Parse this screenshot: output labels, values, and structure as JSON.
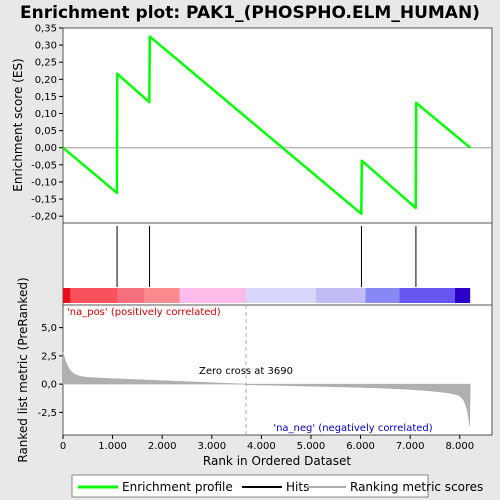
{
  "chart_data": {
    "type": "line",
    "title": "Enrichment plot: PAK1_(PHOSPHO.ELM_HUMAN)",
    "colors": {
      "enrichment": "#00ff00",
      "hits": "#000000",
      "metric": "#b0b0b0",
      "pos_label": "#cc0000",
      "neg_label": "#0000cc",
      "zero_line": "#aaaaaa"
    },
    "enrichment_panel": {
      "ylabel": "Enrichment score (ES)",
      "ylim": [
        -0.22,
        0.35
      ],
      "yticks": [
        0.35,
        0.3,
        0.25,
        0.2,
        0.15,
        0.1,
        0.05,
        0.0,
        -0.05,
        -0.1,
        -0.15,
        -0.2
      ],
      "ytick_labels": [
        "0,35",
        "0,30",
        "0,25",
        "0,20",
        "0,15",
        "0,10",
        "0,05",
        "0,00",
        "-0,05",
        "-0,10",
        "-0,15",
        "-0,20"
      ],
      "es_curve": {
        "x": [
          0,
          1087,
          1095,
          1740,
          1750,
          6014,
          6025,
          7112,
          7122,
          8210
        ],
        "y": [
          0.0,
          -0.132,
          0.216,
          0.133,
          0.325,
          -0.193,
          -0.038,
          -0.176,
          0.131,
          0.0
        ]
      }
    },
    "hits": [
      1090,
      1745,
      6018,
      7116
    ],
    "ranked_panel": {
      "ylabel": "Ranked list metric (PreRanked)",
      "ylim": [
        -4.5,
        7.0
      ],
      "yticks": [
        5.0,
        2.5,
        0.0,
        -2.5
      ],
      "ytick_labels": [
        "5,0",
        "2,5",
        "0,0",
        "-2,5"
      ],
      "pos_label": "'na_pos' (positively correlated)",
      "neg_label": "'na_neg' (negatively correlated)",
      "zero_cross_label": "Zero cross at 3690",
      "zero_cross": 3690
    },
    "xlabel": "Rank in Ordered Dataset",
    "xlim": [
      0,
      8650
    ],
    "xticks": [
      0,
      1000,
      2000,
      3000,
      4000,
      5000,
      6000,
      7000,
      8000
    ],
    "xtick_labels": [
      "0",
      "1.000",
      "2.000",
      "3.000",
      "4.000",
      "5.000",
      "6.000",
      "7.000",
      "8.000"
    ],
    "n_genes": 8210,
    "heatmap_bands": [
      {
        "x0": 0,
        "x1": 150,
        "color": "#e8101a"
      },
      {
        "x0": 150,
        "x1": 1100,
        "color": "#f9525c"
      },
      {
        "x0": 1100,
        "x1": 1650,
        "color": "#f56f7c"
      },
      {
        "x0": 1650,
        "x1": 2350,
        "color": "#fa8a8e"
      },
      {
        "x0": 2350,
        "x1": 3690,
        "color": "#fdbcea"
      },
      {
        "x0": 3690,
        "x1": 5100,
        "color": "#d8d6fa"
      },
      {
        "x0": 5100,
        "x1": 6100,
        "color": "#c2bdf6"
      },
      {
        "x0": 6100,
        "x1": 6780,
        "color": "#8888f4"
      },
      {
        "x0": 6780,
        "x1": 7900,
        "color": "#6655ee"
      },
      {
        "x0": 7900,
        "x1": 8210,
        "color": "#2a00c9"
      }
    ],
    "legend": [
      "Enrichment profile",
      "Hits",
      "Ranking metric scores"
    ]
  }
}
